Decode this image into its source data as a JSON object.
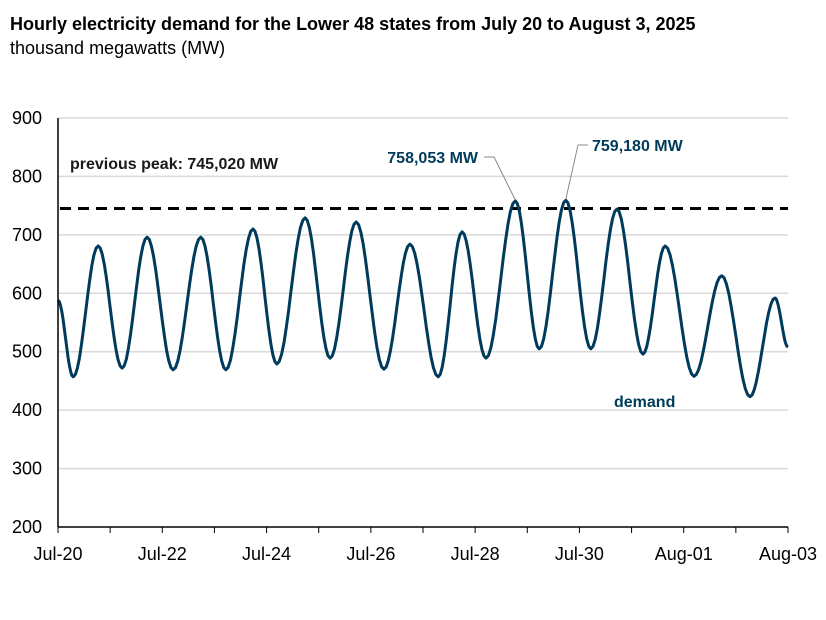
{
  "chart_data": {
    "type": "line",
    "title": "Hourly electricity demand for the Lower 48 states from July 20 to August 3, 2025",
    "subtitle": "thousand megawatts (MW)",
    "xlabel": "",
    "ylabel": "",
    "ylim": [
      200,
      900
    ],
    "yticks": [
      "200",
      "300",
      "400",
      "500",
      "600",
      "700",
      "800",
      "900"
    ],
    "xlim": [
      "2025-07-20",
      "2025-08-03"
    ],
    "xticks": [
      "Jul-20",
      "Jul-22",
      "Jul-24",
      "Jul-26",
      "Jul-28",
      "Jul-30",
      "Aug-01",
      "Aug-03"
    ],
    "grid": "horizontal",
    "series": [
      {
        "name": "demand",
        "color": "#003b5c",
        "points": [
          [
            "2025-07-20T00:00",
            588
          ],
          [
            "2025-07-20T07:00",
            457
          ],
          [
            "2025-07-20T18:30",
            681
          ],
          [
            "2025-07-21T05:30",
            472
          ],
          [
            "2025-07-21T17:00",
            696
          ],
          [
            "2025-07-22T05:00",
            469
          ],
          [
            "2025-07-22T17:45",
            696
          ],
          [
            "2025-07-23T05:15",
            469
          ],
          [
            "2025-07-23T17:45",
            710
          ],
          [
            "2025-07-24T04:45",
            479
          ],
          [
            "2025-07-24T17:45",
            729
          ],
          [
            "2025-07-25T05:15",
            489
          ],
          [
            "2025-07-25T17:15",
            722
          ],
          [
            "2025-07-26T06:00",
            470
          ],
          [
            "2025-07-26T18:00",
            684
          ],
          [
            "2025-07-27T07:00",
            457
          ],
          [
            "2025-07-27T18:00",
            705
          ],
          [
            "2025-07-28T05:00",
            489
          ],
          [
            "2025-07-28T18:30",
            758.053
          ],
          [
            "2025-07-29T05:30",
            505
          ],
          [
            "2025-07-29T17:45",
            759.18
          ],
          [
            "2025-07-30T05:15",
            505
          ],
          [
            "2025-07-30T17:15",
            744
          ],
          [
            "2025-07-31T05:15",
            496
          ],
          [
            "2025-07-31T15:30",
            681
          ],
          [
            "2025-08-01T04:45",
            458
          ],
          [
            "2025-08-01T17:30",
            630
          ],
          [
            "2025-08-02T06:30",
            423
          ],
          [
            "2025-08-02T18:00",
            592
          ],
          [
            "2025-08-03T00:00",
            508
          ]
        ]
      }
    ],
    "reference_line": {
      "value": 745.02,
      "label": "previous peak: 745,020 MW",
      "style": "dashed",
      "color": "#000000"
    },
    "annotations": [
      {
        "text": "758,053 MW",
        "x": "2025-07-28T18:30",
        "y": 758.053
      },
      {
        "text": "759,180 MW",
        "x": "2025-07-29T17:45",
        "y": 759.18
      }
    ],
    "series_label": "demand"
  }
}
